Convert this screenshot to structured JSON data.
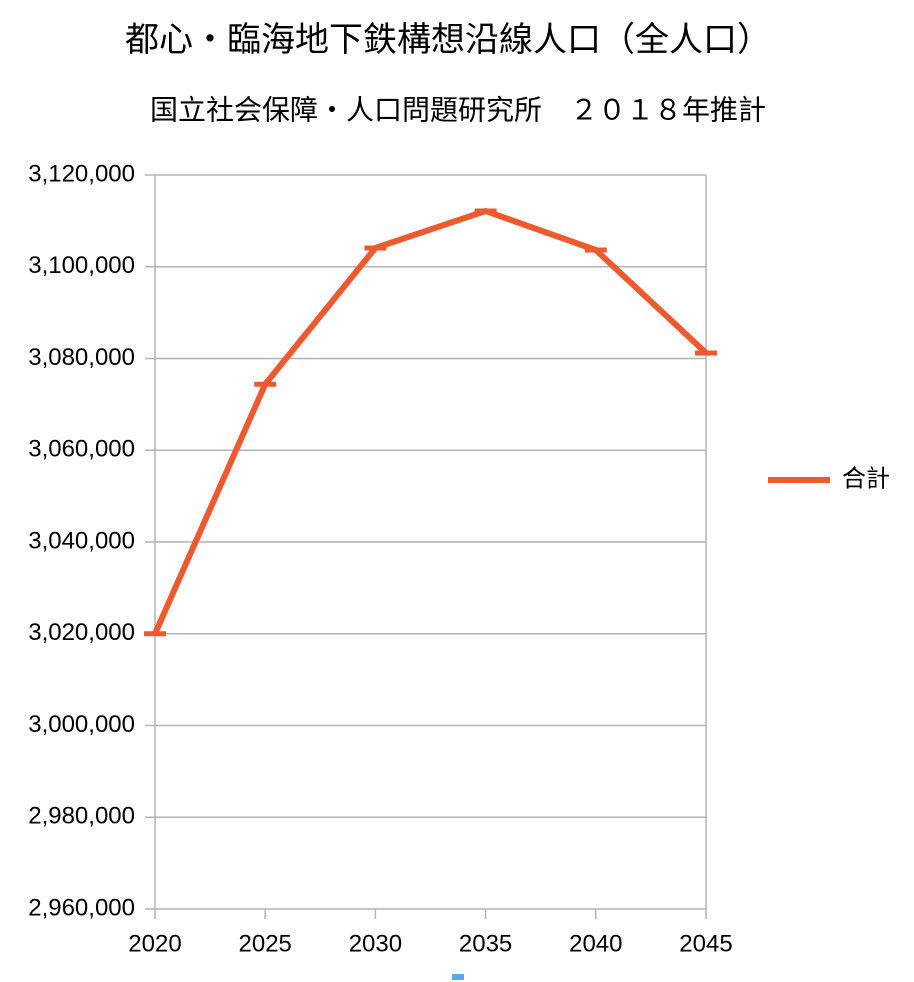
{
  "chart_data": {
    "type": "line",
    "title": "都心・臨海地下鉄構想沿線人口（全人口）",
    "subtitle": "国立社会保障・人口問題研究所　２０１８年推計",
    "x": [
      2020,
      2025,
      2030,
      2035,
      2040,
      2045
    ],
    "series": [
      {
        "name": "合計",
        "color": "#ee5a2f",
        "values": [
          3020000,
          3074400,
          3104100,
          3112150,
          3103650,
          3081200
        ]
      }
    ],
    "xlim": [
      2020,
      2045
    ],
    "xticks": [
      2020,
      2025,
      2030,
      2035,
      2040,
      2045
    ],
    "ylim": [
      2960000,
      3120000
    ],
    "yticks": [
      {
        "value": 2960000,
        "label": "2,960,000"
      },
      {
        "value": 2980000,
        "label": "2,980,000"
      },
      {
        "value": 3000000,
        "label": "3,000,000"
      },
      {
        "value": 3020000,
        "label": "3,020,000"
      },
      {
        "value": 3040000,
        "label": "3,040,000"
      },
      {
        "value": 3060000,
        "label": "3,060,000"
      },
      {
        "value": 3080000,
        "label": "3,080,000"
      },
      {
        "value": 3100000,
        "label": "3,100,000"
      },
      {
        "value": 3120000,
        "label": "3,120,000"
      }
    ],
    "grid": true,
    "legend": "right"
  }
}
